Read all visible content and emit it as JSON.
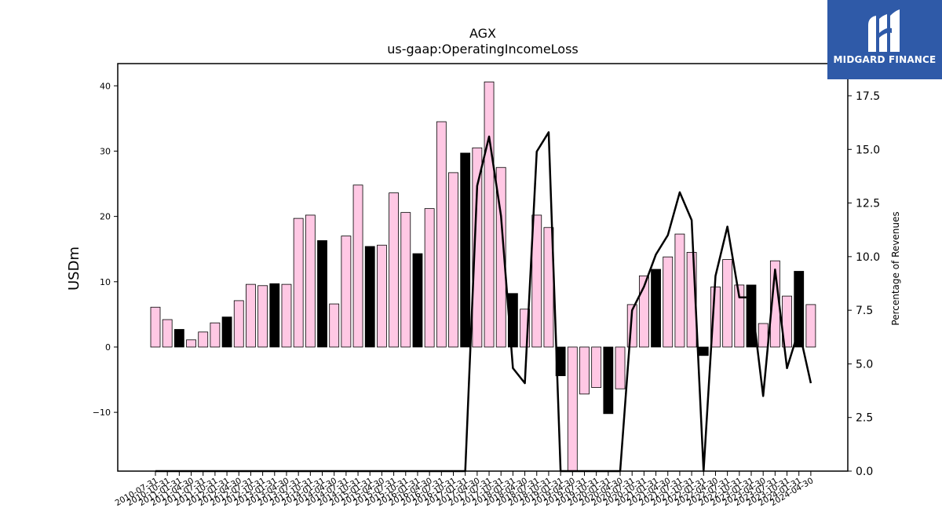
{
  "brand": {
    "name": "MIDGARD FINANCE",
    "bg_color": "#2f5aa8"
  },
  "chart_data": {
    "type": "bar",
    "title": "AGX",
    "subtitle": "us-gaap:OperatingIncomeLoss",
    "ylabel": "USDm",
    "y2label": "Percentage of Revenues",
    "ylim": [
      -19,
      43.4
    ],
    "y2lim": [
      0,
      19.0
    ],
    "yticks": [
      -10,
      0,
      10,
      20,
      30,
      40
    ],
    "y2ticks": [
      0.0,
      2.5,
      5.0,
      7.5,
      10.0,
      12.5,
      15.0,
      17.5
    ],
    "bar_colors": {
      "quarter": "#ffc8e4",
      "annual": "#000000"
    },
    "line_color": "#000000",
    "categories": [
      "2010-07-31",
      "2010-10-31",
      "2011-01-31",
      "2011-04-30",
      "2011-07-31",
      "2011-10-31",
      "2012-01-31",
      "2012-04-30",
      "2012-07-31",
      "2012-10-31",
      "2013-01-31",
      "2013-04-30",
      "2013-07-31",
      "2013-10-31",
      "2014-01-31",
      "2014-04-30",
      "2014-07-31",
      "2014-10-31",
      "2015-01-31",
      "2015-04-30",
      "2015-07-31",
      "2015-10-31",
      "2016-01-31",
      "2016-04-30",
      "2016-07-31",
      "2016-10-31",
      "2017-01-31",
      "2017-04-30",
      "2017-07-31",
      "2017-10-31",
      "2018-01-31",
      "2018-04-30",
      "2018-07-31",
      "2018-10-31",
      "2019-01-31",
      "2019-04-30",
      "2019-07-31",
      "2019-10-31",
      "2020-01-31",
      "2020-04-30",
      "2020-07-31",
      "2020-10-31",
      "2021-01-31",
      "2021-04-30",
      "2021-07-31",
      "2021-10-31",
      "2022-01-31",
      "2022-04-30",
      "2022-07-31",
      "2022-10-31",
      "2023-01-31",
      "2023-04-30",
      "2023-07-31",
      "2023-10-31",
      "2024-01-31",
      "2024-04-30"
    ],
    "series": [
      {
        "type": "bar",
        "axis": "left",
        "values": [
          6.1,
          4.2,
          2.7,
          1.1,
          2.3,
          3.7,
          4.6,
          7.1,
          9.6,
          9.4,
          9.7,
          9.6,
          19.7,
          20.2,
          16.3,
          6.6,
          17.0,
          24.8,
          15.4,
          15.6,
          23.6,
          20.6,
          14.3,
          21.2,
          34.5,
          26.7,
          29.7,
          30.5,
          40.6,
          27.5,
          8.2,
          5.8,
          20.2,
          18.3,
          -4.4,
          -19.0,
          -7.2,
          -6.2,
          -10.2,
          -6.4,
          6.5,
          10.9,
          11.9,
          13.8,
          17.3,
          14.5,
          -1.3,
          9.2,
          13.4,
          9.5,
          9.5,
          3.6,
          13.2,
          7.8,
          11.6,
          6.5
        ],
        "annual": [
          false,
          false,
          true,
          false,
          false,
          false,
          true,
          false,
          false,
          false,
          true,
          false,
          false,
          false,
          true,
          false,
          false,
          false,
          true,
          false,
          false,
          false,
          true,
          false,
          false,
          false,
          true,
          false,
          false,
          false,
          true,
          false,
          false,
          false,
          true,
          false,
          false,
          false,
          true,
          false,
          false,
          false,
          true,
          false,
          false,
          false,
          true,
          false,
          false,
          false,
          true,
          false,
          false,
          false,
          true,
          false
        ]
      },
      {
        "type": "line",
        "axis": "right",
        "values": [
          0,
          0,
          0,
          0,
          0,
          0,
          0,
          0,
          0,
          0,
          0,
          0,
          0,
          0,
          0,
          0,
          0,
          0,
          0,
          0,
          0,
          0,
          0,
          0,
          0,
          0,
          0,
          13.3,
          15.6,
          11.9,
          4.8,
          4.1,
          14.9,
          15.8,
          0,
          0,
          0,
          0,
          0,
          0,
          7.5,
          8.6,
          10.1,
          11.0,
          13.0,
          11.7,
          0,
          9.1,
          11.4,
          8.1,
          8.1,
          3.5,
          9.4,
          4.8,
          6.6,
          4.1
        ]
      }
    ]
  }
}
